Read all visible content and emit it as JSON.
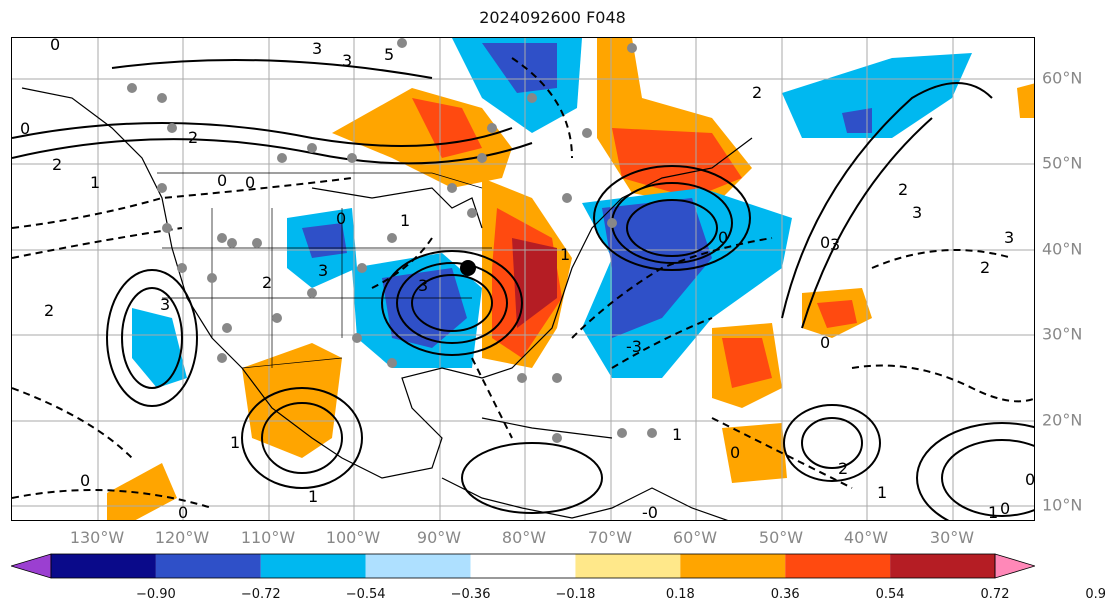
{
  "title": "2024092600 F048",
  "lon_labels": [
    "130°W",
    "120°W",
    "110°W",
    "100°W",
    "90°W",
    "80°W",
    "70°W",
    "60°W",
    "50°W",
    "40°W",
    "30°W"
  ],
  "lat_labels": [
    "60°N",
    "50°N",
    "40°N",
    "30°N",
    "20°N",
    "10°N"
  ],
  "colorbar": {
    "ticks": [
      "−0.90",
      "−0.72",
      "−0.54",
      "−0.36",
      "−0.18",
      "0.18",
      "0.36",
      "0.54",
      "0.72",
      "0.90"
    ],
    "colors": [
      "#9b3fd1",
      "#0a0a8a",
      "#2f50c8",
      "#00b8f0",
      "#aee0ff",
      "#ffffff",
      "#ffe88a",
      "#ffa500",
      "#ff4a10",
      "#b51d24",
      "#ff88b8"
    ]
  },
  "contour_labels": [
    "0",
    "5",
    "3",
    "2",
    "1",
    "0",
    "0",
    "2",
    "3",
    "0",
    "1",
    "3",
    "2",
    "3",
    "2",
    "0",
    "1",
    "2",
    "0",
    "0",
    "1",
    "1",
    "0",
    "-3",
    "2",
    "3",
    "3",
    "0",
    "1",
    "0",
    "2",
    "1",
    "0",
    "-0",
    "0",
    "1",
    "0",
    "3",
    "2",
    "3"
  ],
  "colors": {
    "frame": "#000000",
    "grid": "#aaaaaa",
    "label": "#888888"
  }
}
